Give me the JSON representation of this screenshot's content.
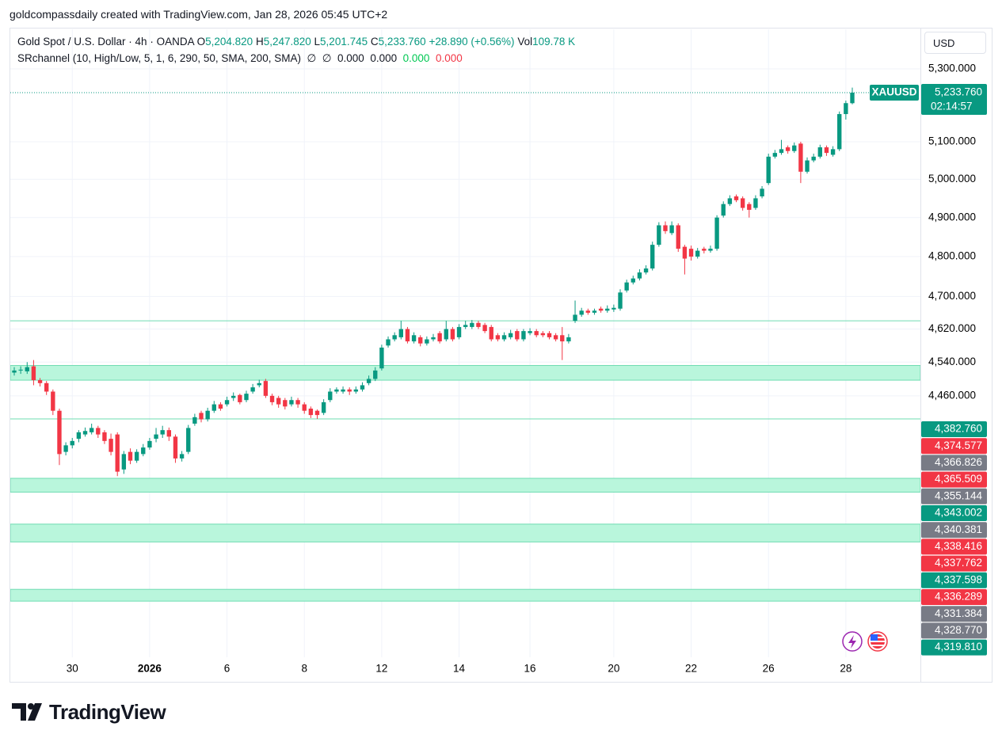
{
  "header": "goldcompassdaily created with TradingView.com, Jan 28, 2026 05:45 UTC+2",
  "legend": {
    "symbol": "Gold Spot / U.S. Dollar · 4h · OANDA",
    "open": {
      "key": "O",
      "value": "5,204.820"
    },
    "high": {
      "key": "H",
      "value": "5,247.820"
    },
    "low": {
      "key": "L",
      "value": "5,201.745"
    },
    "close": {
      "key": "C",
      "value": "5,233.760"
    },
    "change": "+28.890 (+0.56%)",
    "volume": {
      "key": "Vol",
      "value": "109.78 K"
    }
  },
  "indicator": {
    "name": "SRchannel (10, High/Low, 5, 1, 6, 290, 50, SMA, 200, SMA)",
    "values": [
      "∅",
      "∅",
      "0.000",
      "0.000",
      "0.000",
      "0.000"
    ]
  },
  "currency": "USD",
  "brand": "TradingView",
  "chart_data": {
    "type": "candlestick",
    "log_scale": true,
    "grid": true,
    "up_color": "#089981",
    "down_color": "#f23645",
    "categories": [
      null,
      null,
      null,
      null,
      null,
      null,
      null,
      null,
      null,
      "30",
      null,
      null,
      null,
      null,
      null,
      null,
      null,
      null,
      null,
      null,
      null,
      "2026",
      null,
      null,
      null,
      null,
      null,
      null,
      null,
      null,
      null,
      null,
      null,
      "6",
      null,
      null,
      null,
      null,
      null,
      null,
      null,
      null,
      null,
      null,
      null,
      "8",
      null,
      null,
      null,
      null,
      null,
      null,
      null,
      null,
      null,
      null,
      null,
      "12",
      null,
      null,
      null,
      null,
      null,
      null,
      null,
      null,
      null,
      null,
      null,
      "14",
      null,
      null,
      null,
      null,
      null,
      null,
      null,
      null,
      null,
      null,
      "16",
      null,
      null,
      null,
      null,
      null,
      null,
      null,
      null,
      null,
      null,
      null,
      null,
      "20",
      null,
      null,
      null,
      null,
      null,
      null,
      null,
      null,
      null,
      null,
      null,
      "22",
      null,
      null,
      null,
      null,
      null,
      null,
      null,
      null,
      null,
      null,
      null,
      "26",
      null,
      null,
      null,
      null,
      null,
      null,
      null,
      null,
      null,
      null,
      null,
      "28",
      null
    ],
    "open": [
      4515,
      4520,
      4518,
      4530,
      4497,
      4490,
      4470,
      4425,
      4330,
      4345,
      4360,
      4370,
      4375,
      4385,
      4375,
      4360,
      4370,
      4290,
      4330,
      4310,
      4325,
      4340,
      4360,
      4370,
      4380,
      4365,
      4315,
      4330,
      4395,
      4420,
      4405,
      4425,
      4440,
      4440,
      4455,
      4462,
      4450,
      4470,
      4485,
      4495,
      4460,
      4455,
      4450,
      4440,
      4450,
      4440,
      4430,
      4425,
      4420,
      4450,
      4470,
      4470,
      4475,
      4470,
      4475,
      4490,
      4500,
      4525,
      4580,
      4595,
      4600,
      4620,
      4590,
      4600,
      4585,
      4595,
      4610,
      4595,
      4620,
      4600,
      4625,
      4625,
      4635,
      4630,
      4625,
      4605,
      4595,
      4600,
      4615,
      4595,
      4610,
      4615,
      4610,
      4610,
      4605,
      4605,
      4590,
      4640,
      4655,
      4665,
      4660,
      4670,
      4665,
      4668,
      4670,
      4715,
      4735,
      4745,
      4760,
      4770,
      4830,
      4880,
      4860,
      4880,
      4825,
      4820,
      4800,
      4820,
      4815,
      4820,
      4905,
      4935,
      4955,
      4950,
      4935,
      4925,
      4955,
      4990,
      5060,
      5070,
      5085,
      5075,
      5095,
      5020,
      5050,
      5060,
      5085,
      5065,
      5080,
      5175,
      5204.82
    ],
    "high": [
      4528,
      4530,
      4540,
      4545,
      4502,
      4495,
      4475,
      4430,
      4352,
      4362,
      4380,
      4386,
      4395,
      4390,
      4380,
      4372,
      4375,
      4332,
      4338,
      4336,
      4348,
      4362,
      4385,
      4390,
      4386,
      4370,
      4332,
      4392,
      4418,
      4425,
      4432,
      4448,
      4445,
      4458,
      4468,
      4465,
      4472,
      4488,
      4498,
      4500,
      4465,
      4460,
      4455,
      4458,
      4455,
      4445,
      4435,
      4428,
      4452,
      4478,
      4480,
      4482,
      4480,
      4482,
      4492,
      4508,
      4528,
      4582,
      4602,
      4612,
      4640,
      4625,
      4612,
      4605,
      4602,
      4608,
      4615,
      4640,
      4625,
      4632,
      4640,
      4642,
      4640,
      4635,
      4630,
      4610,
      4612,
      4618,
      4620,
      4620,
      4622,
      4620,
      4615,
      4615,
      4610,
      4625,
      4608,
      4690,
      4672,
      4670,
      4670,
      4675,
      4678,
      4680,
      4718,
      4742,
      4752,
      4768,
      4778,
      4838,
      4888,
      4890,
      4890,
      4885,
      4830,
      4828,
      4822,
      4825,
      4828,
      4906,
      4942,
      4958,
      4960,
      4955,
      4940,
      4958,
      4982,
      5068,
      5078,
      5105,
      5090,
      5098,
      5100,
      5058,
      5068,
      5092,
      5090,
      5088,
      5182,
      5212,
      5247.82
    ],
    "low": [
      4508,
      4512,
      4512,
      4485,
      4482,
      4462,
      4415,
      4300,
      4322,
      4338,
      4352,
      4365,
      4370,
      4362,
      4348,
      4322,
      4275,
      4280,
      4302,
      4305,
      4320,
      4335,
      4352,
      4362,
      4355,
      4305,
      4308,
      4325,
      4390,
      4398,
      4400,
      4420,
      4425,
      4435,
      4448,
      4440,
      4445,
      4465,
      4480,
      4455,
      4438,
      4432,
      4428,
      4435,
      4432,
      4418,
      4408,
      4406,
      4415,
      4445,
      4465,
      4465,
      4462,
      4465,
      4470,
      4485,
      4495,
      4520,
      4575,
      4590,
      4595,
      4585,
      4585,
      4578,
      4580,
      4590,
      4585,
      4590,
      4590,
      4595,
      4620,
      4620,
      4620,
      4610,
      4590,
      4590,
      4590,
      4595,
      4590,
      4590,
      4605,
      4600,
      4600,
      4595,
      4590,
      4545,
      4585,
      4635,
      4650,
      4655,
      4655,
      4660,
      4660,
      4662,
      4665,
      4710,
      4730,
      4740,
      4755,
      4765,
      4825,
      4858,
      4855,
      4812,
      4755,
      4790,
      4795,
      4808,
      4810,
      4815,
      4900,
      4930,
      4940,
      4918,
      4900,
      4920,
      4950,
      4985,
      5055,
      5065,
      5068,
      5070,
      4990,
      5015,
      5045,
      5055,
      5062,
      5060,
      5075,
      5160,
      5201.745
    ],
    "close": [
      4520,
      4522,
      4528,
      4497,
      4490,
      4470,
      4425,
      4325,
      4345,
      4355,
      4375,
      4378,
      4385,
      4370,
      4355,
      4330,
      4285,
      4325,
      4310,
      4330,
      4340,
      4355,
      4370,
      4380,
      4365,
      4315,
      4325,
      4385,
      4410,
      4405,
      4425,
      4440,
      4430,
      4450,
      4460,
      4445,
      4465,
      4480,
      4490,
      4460,
      4445,
      4440,
      4435,
      4450,
      4440,
      4425,
      4415,
      4415,
      4445,
      4470,
      4475,
      4475,
      4470,
      4475,
      4485,
      4500,
      4520,
      4575,
      4595,
      4605,
      4620,
      4590,
      4605,
      4585,
      4595,
      4600,
      4590,
      4620,
      4595,
      4625,
      4630,
      4635,
      4625,
      4615,
      4595,
      4595,
      4605,
      4610,
      4595,
      4615,
      4615,
      4605,
      4605,
      4600,
      4595,
      4590,
      4600,
      4655,
      4665,
      4660,
      4665,
      4665,
      4670,
      4672,
      4710,
      4735,
      4745,
      4760,
      4770,
      4830,
      4880,
      4865,
      4880,
      4820,
      4795,
      4800,
      4815,
      4815,
      4820,
      4900,
      4935,
      4950,
      4945,
      4925,
      4920,
      4950,
      4975,
      5060,
      5070,
      5080,
      5075,
      5090,
      5020,
      5050,
      5060,
      5085,
      5070,
      5080,
      5175,
      5205,
      5233.76
    ],
    "ylim": [
      3840,
      5405
    ],
    "yticks": [
      {
        "value": 5300,
        "label": "5,300.000"
      },
      {
        "value": 5100,
        "label": "5,100.000"
      },
      {
        "value": 5000,
        "label": "5,000.000"
      },
      {
        "value": 4900,
        "label": "4,900.000"
      },
      {
        "value": 4800,
        "label": "4,800.000"
      },
      {
        "value": 4700,
        "label": "4,700.000"
      },
      {
        "value": 4620,
        "label": "4,620.000"
      },
      {
        "value": 4540,
        "label": "4,540.000"
      },
      {
        "value": 4460,
        "label": "4,460.000"
      }
    ],
    "sr_zones": [
      {
        "low": 4497,
        "high": 4532
      },
      {
        "low": 4239,
        "high": 4270
      },
      {
        "low": 4129,
        "high": 4168
      },
      {
        "low": 4002,
        "high": 4027
      }
    ],
    "sr_lines": [
      4640,
      4406
    ],
    "zone_color": "#b9f6dc",
    "zone_border": "#6fdcb2",
    "symbol_tag": "XAUUSD",
    "last_price_label": "5,233.760",
    "countdown": "02:14:57",
    "price_labels": [
      {
        "label": "4,382.760",
        "color": "#089981"
      },
      {
        "label": "4,374.577",
        "color": "#f23645"
      },
      {
        "label": "4,366.826",
        "color": "#787b86"
      },
      {
        "label": "4,365.509",
        "color": "#f23645"
      },
      {
        "label": "4,355.144",
        "color": "#787b86"
      },
      {
        "label": "4,343.002",
        "color": "#089981"
      },
      {
        "label": "4,340.381",
        "color": "#787b86"
      },
      {
        "label": "4,338.416",
        "color": "#f23645"
      },
      {
        "label": "4,337.762",
        "color": "#f23645"
      },
      {
        "label": "4,337.598",
        "color": "#089981"
      },
      {
        "label": "4,336.289",
        "color": "#f23645"
      },
      {
        "label": "4,331.384",
        "color": "#787b86"
      },
      {
        "label": "4,328.770",
        "color": "#787b86"
      },
      {
        "label": "4,319.810",
        "color": "#089981"
      }
    ]
  }
}
